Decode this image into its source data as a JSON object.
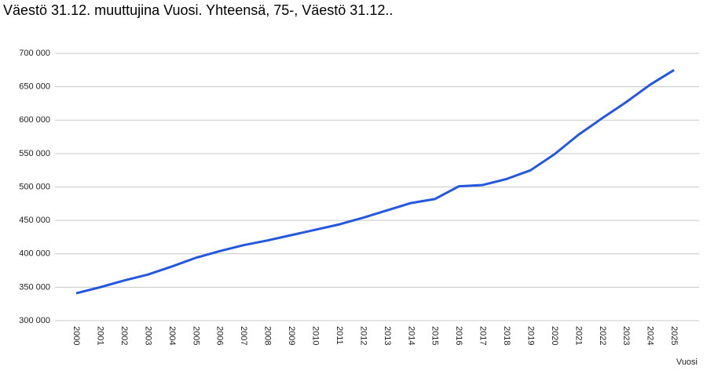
{
  "chart_data": {
    "type": "line",
    "title": "Väestö 31.12. muuttujina Vuosi. Yhteensä, 75-, Väestö 31.12..",
    "x_label": "Vuosi",
    "categories": [
      "2000",
      "2001",
      "2002",
      "2003",
      "2004",
      "2005",
      "2006",
      "2007",
      "2008",
      "2009",
      "2010",
      "2011",
      "2012",
      "2013",
      "2014",
      "2015",
      "2016",
      "2017",
      "2018",
      "2019",
      "2020",
      "2021",
      "2022",
      "2023",
      "2024",
      "2025"
    ],
    "series": [
      {
        "color": "#2457e0",
        "values": [
          341000,
          350000,
          360000,
          369000,
          381000,
          394000,
          404000,
          413000,
          420000,
          428000,
          436000,
          444000,
          454000,
          465000,
          476000,
          482000,
          501000,
          503000,
          512000,
          525000,
          549000,
          578000,
          603000,
          627000,
          653000,
          675000
        ]
      }
    ],
    "ylim": [
      300000,
      700000
    ],
    "yticks": [
      {
        "value": 300000,
        "label": "300 000"
      },
      {
        "value": 350000,
        "label": "350 000"
      },
      {
        "value": 400000,
        "label": "400 000"
      },
      {
        "value": 450000,
        "label": "450 000"
      },
      {
        "value": 500000,
        "label": "500 000"
      },
      {
        "value": 550000,
        "label": "550 000"
      },
      {
        "value": 600000,
        "label": "600 000"
      },
      {
        "value": 650000,
        "label": "650 000"
      },
      {
        "value": 700000,
        "label": "700 000"
      }
    ],
    "grid": true
  }
}
